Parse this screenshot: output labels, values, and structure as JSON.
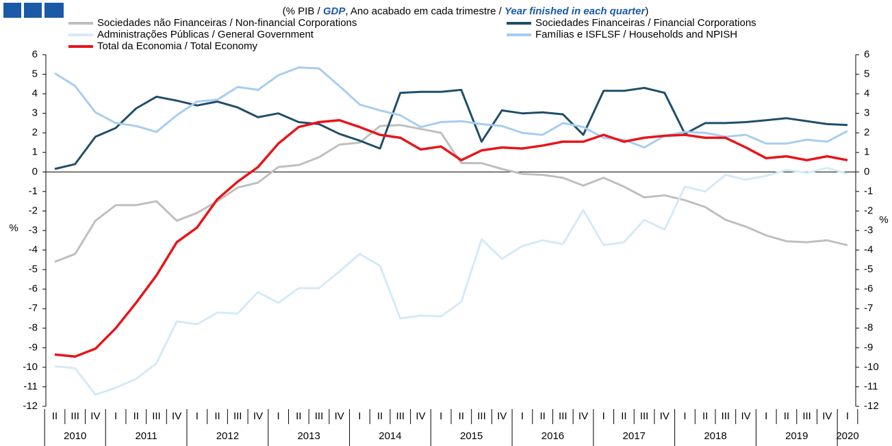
{
  "chart_data": {
    "type": "line",
    "title_parts": [
      "(% PIB / ",
      "GDP",
      ", Ano acabado em cada trimestre / ",
      "Year finished in each quarter",
      ")"
    ],
    "ylabel": "%",
    "y2label": "%",
    "categories": [
      "II",
      "III",
      "IV",
      "I",
      "II",
      "III",
      "IV",
      "I",
      "II",
      "III",
      "IV",
      "I",
      "II",
      "III",
      "IV",
      "I",
      "II",
      "III",
      "IV",
      "I",
      "II",
      "III",
      "IV",
      "I",
      "II",
      "III",
      "IV",
      "I",
      "II",
      "III",
      "IV",
      "I",
      "II",
      "III",
      "IV",
      "I",
      "II",
      "III",
      "IV",
      "I"
    ],
    "years": [
      "2010",
      "2011",
      "2012",
      "2013",
      "2014",
      "2015",
      "2016",
      "2017",
      "2018",
      "2019",
      "2020"
    ],
    "ylim": [
      -12,
      6
    ],
    "yticks": [
      -12,
      -11,
      -10,
      -9,
      -8,
      -7,
      -6,
      -5,
      -4,
      -3,
      -2,
      -1,
      0,
      1,
      2,
      3,
      4,
      5,
      6
    ],
    "y2lim": [
      -12,
      6
    ],
    "y2ticks": [
      -12,
      -11,
      -10,
      -9,
      -8,
      -7,
      -6,
      -5,
      -4,
      -3,
      -2,
      -1,
      0,
      1,
      2,
      3,
      4,
      5,
      6
    ],
    "legend": "top",
    "grid": false,
    "series": [
      {
        "name": "Sociedades não Financeiras / Non-financial Corporations",
        "color": "#bfbfbf",
        "values": [
          -4.6,
          -4.2,
          -2.5,
          -1.7,
          -1.7,
          -1.5,
          -2.5,
          -2.1,
          -1.5,
          -0.8,
          -0.55,
          0.25,
          0.35,
          0.75,
          1.4,
          1.5,
          2.35,
          2.4,
          2.2,
          2.0,
          0.45,
          0.45,
          0.15,
          -0.1,
          -0.15,
          -0.3,
          -0.7,
          -0.3,
          -0.75,
          -1.3,
          -1.2,
          -1.45,
          -1.8,
          -2.45,
          -2.8,
          -3.25,
          -3.55,
          -3.6,
          -3.5,
          -3.75
        ]
      },
      {
        "name": "Sociedades Financeiras / Financial Corporations",
        "color": "#1f4e69",
        "values": [
          0.15,
          0.4,
          1.8,
          2.25,
          3.25,
          3.85,
          3.65,
          3.4,
          3.6,
          3.3,
          2.8,
          3.0,
          2.55,
          2.45,
          1.95,
          1.6,
          1.2,
          4.05,
          4.1,
          4.1,
          4.2,
          1.55,
          3.15,
          3.0,
          3.05,
          2.95,
          1.9,
          4.15,
          4.15,
          4.3,
          4.05,
          1.95,
          2.5,
          2.5,
          2.55,
          2.65,
          2.75,
          2.6,
          2.45,
          2.4
        ]
      },
      {
        "name": "Administrações Públicas / General Government",
        "color": "#d3eaf8",
        "values": [
          -9.95,
          -10.05,
          -11.4,
          -11.05,
          -10.6,
          -9.8,
          -7.65,
          -7.8,
          -7.2,
          -7.25,
          -6.15,
          -6.7,
          -5.95,
          -5.95,
          -5.1,
          -4.2,
          -4.8,
          -7.5,
          -7.35,
          -7.4,
          -6.65,
          -3.45,
          -4.45,
          -3.8,
          -3.5,
          -3.7,
          -1.95,
          -3.75,
          -3.6,
          -2.45,
          -2.95,
          -0.75,
          -1.0,
          -0.15,
          -0.4,
          -0.2,
          0.1,
          -0.05,
          0.2,
          -0.1
        ]
      },
      {
        "name": "Famílias e ISFLSF / Households and NPISH",
        "color": "#a6cdf2",
        "values": [
          5.05,
          4.4,
          3.05,
          2.5,
          2.35,
          2.05,
          2.9,
          3.6,
          3.7,
          4.35,
          4.2,
          4.95,
          5.35,
          5.3,
          4.4,
          3.45,
          3.15,
          2.9,
          2.3,
          2.55,
          2.6,
          2.45,
          2.35,
          2.0,
          1.9,
          2.5,
          2.3,
          1.75,
          1.65,
          1.25,
          1.85,
          2.05,
          2.0,
          1.8,
          1.9,
          1.45,
          1.45,
          1.65,
          1.55,
          2.1
        ]
      },
      {
        "name": "Total da Economia / Total Economy",
        "color": "#e8141a",
        "values": [
          -9.35,
          -9.45,
          -9.05,
          -8.0,
          -6.7,
          -5.3,
          -3.6,
          -2.85,
          -1.4,
          -0.5,
          0.25,
          1.45,
          2.3,
          2.55,
          2.65,
          2.3,
          1.9,
          1.75,
          1.15,
          1.3,
          0.6,
          1.1,
          1.25,
          1.2,
          1.35,
          1.55,
          1.55,
          1.9,
          1.55,
          1.75,
          1.85,
          1.9,
          1.75,
          1.75,
          1.25,
          0.7,
          0.8,
          0.6,
          0.8,
          0.6
        ]
      }
    ]
  }
}
